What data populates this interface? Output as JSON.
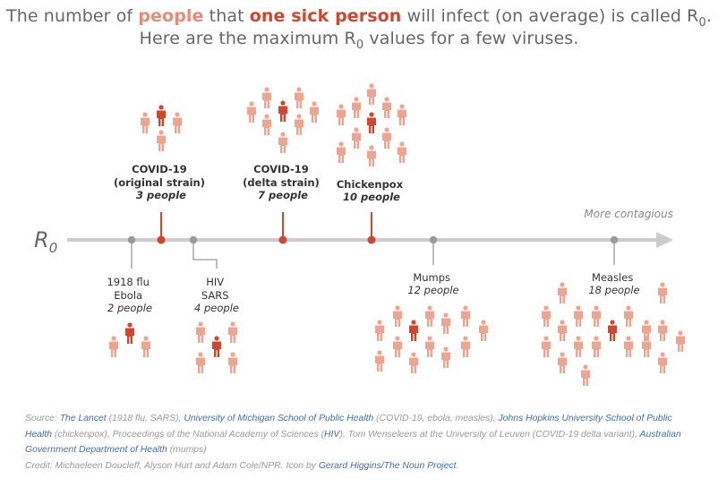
{
  "title": {
    "l1_pre": "The number of ",
    "l1_people": "people",
    "l1_mid": " that ",
    "l1_sick": "one sick person",
    "l1_post": " will infect (on average) is called R",
    "l1_sub": "0",
    "l1_end": ".",
    "l2_pre": "Here are the maximum R",
    "l2_sub": "0",
    "l2_post": " values for a few viruses."
  },
  "axis": {
    "label": "R",
    "label_sub": "0",
    "direction_label": "More contagious"
  },
  "colors": {
    "sick": "#d4452b",
    "infected": "#f0a38f",
    "axis": "#cccccc",
    "marker_grey": "#999999",
    "link": "#3f6fb5"
  },
  "chart_data": {
    "type": "dot-plot",
    "unit": "people",
    "viruses": [
      {
        "key": "flu_ebola",
        "names": [
          "1918 flu",
          "Ebola"
        ],
        "value": 2,
        "value_label": "2 people",
        "highlight": false
      },
      {
        "key": "covid_orig",
        "names": [
          "COVID-19",
          "(original strain)"
        ],
        "value": 3,
        "value_label": "3 people",
        "highlight": true
      },
      {
        "key": "hiv_sars",
        "names": [
          "HIV",
          "SARS"
        ],
        "value": 4,
        "value_label": "4 people",
        "highlight": false
      },
      {
        "key": "covid_delta",
        "names": [
          "COVID-19",
          "(delta strain)"
        ],
        "value": 7,
        "value_label": "7 people",
        "highlight": true
      },
      {
        "key": "chickenpox",
        "names": [
          "Chickenpox"
        ],
        "value": 10,
        "value_label": "10 people",
        "highlight": true
      },
      {
        "key": "mumps",
        "names": [
          "Mumps"
        ],
        "value": 12,
        "value_label": "12 people",
        "highlight": false
      },
      {
        "key": "measles",
        "names": [
          "Measles"
        ],
        "value": 18,
        "value_label": "18 people",
        "highlight": false
      }
    ]
  },
  "footer": {
    "source_label": "Source: ",
    "src_lancet": "The Lancet",
    "src_lancet_note": " (1918 flu, SARS), ",
    "src_umich": "University of Michigan School of Public Health",
    "src_umich_note": " (COVID-19, ebola, measles), ",
    "src_jhu": "Johns Hopkins University School of Public Health",
    "src_jhu_note": " (chickenpox), Proceedings of the National Academy of Sciences (",
    "src_hiv": "HIV",
    "src_hiv_note": "), Tom Wenseleers at the University of Leuven (COVID-19 delta variant), ",
    "src_aus": "Australian Government Department of Health",
    "src_aus_note": " (mumps)",
    "credit_text": "Credit: Michaeleen Doucleff, Alyson Hurt and Adam Cole/NPR. Icon by ",
    "credit_link": "Gerard Higgins/The Noun Project",
    "credit_end": "."
  }
}
